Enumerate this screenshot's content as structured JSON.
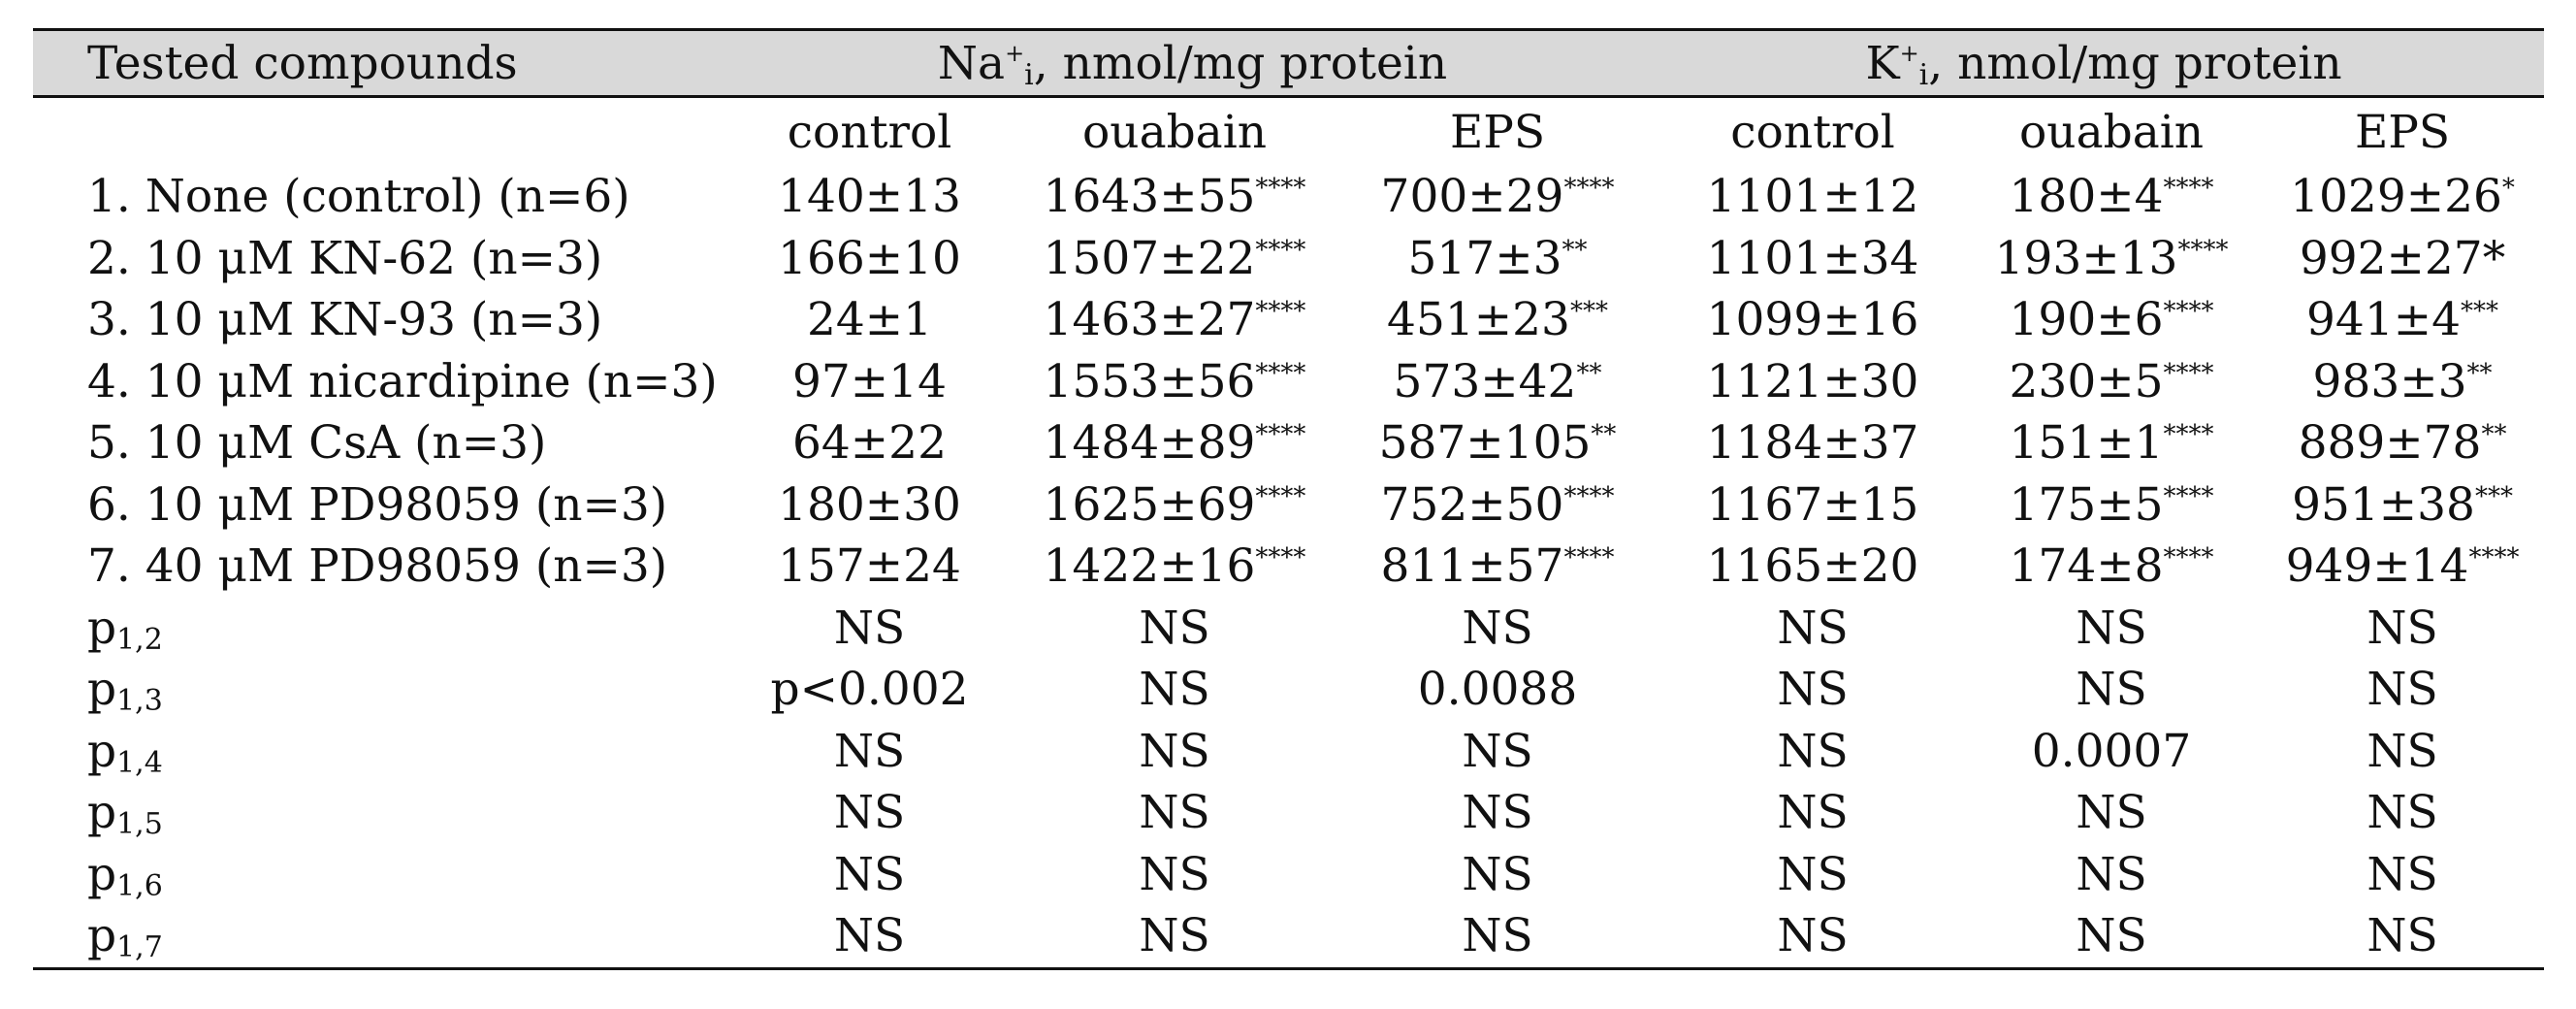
{
  "header": {
    "compounds": "Tested compounds",
    "na_group": {
      "ion": "Na",
      "charge": "+",
      "sub": "i",
      "unit": ", nmol/mg protein"
    },
    "k_group": {
      "ion": "K",
      "charge": "+",
      "sub": "i",
      "unit": ", nmol/mg protein"
    },
    "subcolumns": [
      "control",
      "ouabain",
      "EPS",
      "control",
      "ouabain",
      "EPS"
    ]
  },
  "rows": [
    {
      "label": "1. None (control) (n=6)",
      "cells": [
        {
          "v": "140±13",
          "s": ""
        },
        {
          "v": "1643±55",
          "s": "****"
        },
        {
          "v": "700±29",
          "s": "****"
        },
        {
          "v": "1101±12",
          "s": ""
        },
        {
          "v": "180±4",
          "s": "****"
        },
        {
          "v": "1029±26",
          "s": "*"
        }
      ]
    },
    {
      "label": "2. 10 μM KN-62 (n=3)",
      "cells": [
        {
          "v": "166±10",
          "s": ""
        },
        {
          "v": "1507±22",
          "s": "****"
        },
        {
          "v": "517±3",
          "s": "**"
        },
        {
          "v": "1101±34",
          "s": ""
        },
        {
          "v": "193±13",
          "s": "****"
        },
        {
          "v": "992±27*",
          "s": ""
        }
      ]
    },
    {
      "label": "3. 10 μM KN-93 (n=3)",
      "cells": [
        {
          "v": "24±1",
          "s": ""
        },
        {
          "v": "1463±27",
          "s": "****"
        },
        {
          "v": "451±23",
          "s": "***"
        },
        {
          "v": "1099±16",
          "s": ""
        },
        {
          "v": "190±6",
          "s": "****"
        },
        {
          "v": "941±4",
          "s": "***"
        }
      ]
    },
    {
      "label": "4. 10 μM nicardipine (n=3)",
      "cells": [
        {
          "v": "97±14",
          "s": ""
        },
        {
          "v": "1553±56",
          "s": "****"
        },
        {
          "v": "573±42",
          "s": "**"
        },
        {
          "v": "1121±30",
          "s": ""
        },
        {
          "v": "230±5",
          "s": "****"
        },
        {
          "v": "983±3",
          "s": "**"
        }
      ]
    },
    {
      "label": "5. 10 μM CsA (n=3)",
      "cells": [
        {
          "v": "64±22",
          "s": ""
        },
        {
          "v": "1484±89",
          "s": "****"
        },
        {
          "v": "587±105",
          "s": "**"
        },
        {
          "v": "1184±37",
          "s": ""
        },
        {
          "v": "151±1",
          "s": "****"
        },
        {
          "v": "889±78",
          "s": "**"
        }
      ]
    },
    {
      "label": "6. 10 μM PD98059 (n=3)",
      "cells": [
        {
          "v": "180±30",
          "s": ""
        },
        {
          "v": "1625±69",
          "s": "****"
        },
        {
          "v": "752±50",
          "s": "****"
        },
        {
          "v": "1167±15",
          "s": ""
        },
        {
          "v": "175±5",
          "s": "****"
        },
        {
          "v": "951±38",
          "s": "***"
        }
      ]
    },
    {
      "label": "7. 40 μM PD98059 (n=3)",
      "cells": [
        {
          "v": "157±24",
          "s": ""
        },
        {
          "v": "1422±16",
          "s": "****"
        },
        {
          "v": "811±57",
          "s": "****"
        },
        {
          "v": "1165±20",
          "s": ""
        },
        {
          "v": "174±8",
          "s": "****"
        },
        {
          "v": "949±14",
          "s": "****"
        }
      ]
    }
  ],
  "p_rows": [
    {
      "p": "p",
      "sub": "1,2",
      "cells": [
        "NS",
        "NS",
        "NS",
        "NS",
        "NS",
        "NS"
      ]
    },
    {
      "p": "p",
      "sub": "1,3",
      "cells": [
        "p<0.002",
        "NS",
        "0.0088",
        "NS",
        "NS",
        "NS"
      ]
    },
    {
      "p": "p",
      "sub": "1,4",
      "cells": [
        "NS",
        "NS",
        "NS",
        "NS",
        "0.0007",
        "NS"
      ]
    },
    {
      "p": "p",
      "sub": "1,5",
      "cells": [
        "NS",
        "NS",
        "NS",
        "NS",
        "NS",
        "NS"
      ]
    },
    {
      "p": "p",
      "sub": "1,6",
      "cells": [
        "NS",
        "NS",
        "NS",
        "NS",
        "NS",
        "NS"
      ]
    },
    {
      "p": "p",
      "sub": "1,7",
      "cells": [
        "NS",
        "NS",
        "NS",
        "NS",
        "NS",
        "NS"
      ]
    }
  ],
  "colors": {
    "header_band": "#d9d9d9",
    "rule": "#111111"
  }
}
